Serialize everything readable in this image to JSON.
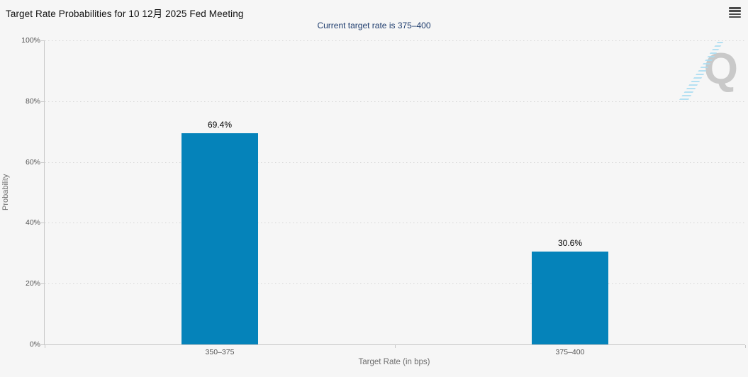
{
  "watermark": {
    "letter": "Q"
  },
  "menu": {
    "icon": "hamburger-icon"
  },
  "chart_data": {
    "type": "bar",
    "title": "Target Rate Probabilities for 10 12月 2025 Fed Meeting",
    "subtitle": "Current target rate is 375–400",
    "xlabel": "Target Rate (in bps)",
    "ylabel": "Probability",
    "categories": [
      "350–375",
      "375–400"
    ],
    "values": [
      69.4,
      30.6
    ],
    "value_labels": [
      "69.4%",
      "30.6%"
    ],
    "ylim": [
      0,
      100
    ],
    "yticks": [
      {
        "label": "0%",
        "value": 0
      },
      {
        "label": "20%",
        "value": 20
      },
      {
        "label": "40%",
        "value": 40
      },
      {
        "label": "60%",
        "value": 60
      },
      {
        "label": "80%",
        "value": 80
      },
      {
        "label": "100%",
        "value": 100
      }
    ],
    "grid": "dotted-horizontal",
    "legend": "none",
    "bar_color": "#0583ba"
  },
  "colors": {
    "background": "#f6f6f6",
    "bar": "#0583ba",
    "title_text": "#111111",
    "subtitle_text": "#1f3d6e",
    "axis_label": "#555555",
    "axis_title": "#6e6e6e",
    "gridline": "#d5d5d5",
    "axis_line": "#c8c8c8",
    "menu_icon": "#4a4a4a",
    "watermark_q": "#c9c9c9",
    "watermark_stripes": "#a9dcf1"
  }
}
